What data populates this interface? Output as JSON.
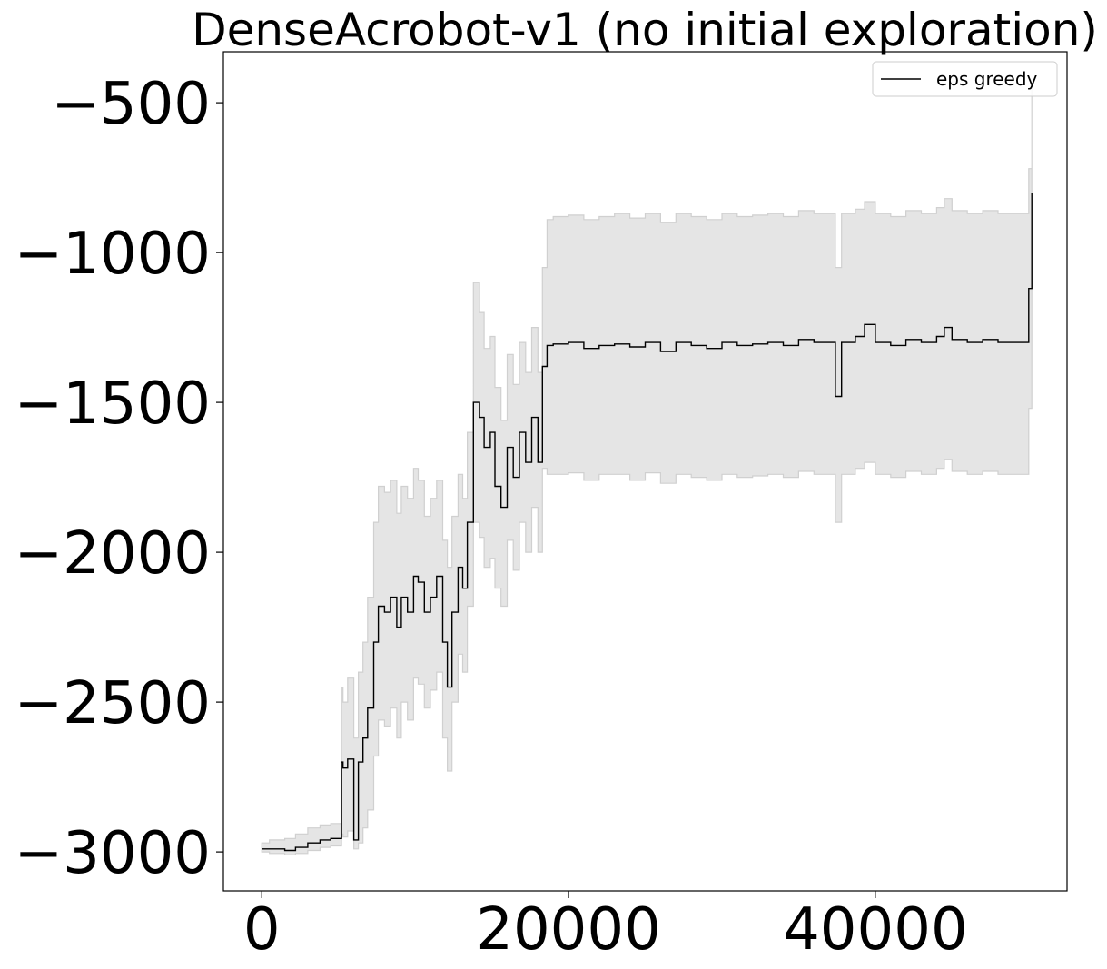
{
  "chart_data": {
    "type": "line",
    "title": "DenseAcrobot-v1 (no initial exploration)",
    "xlabel": "",
    "ylabel": "",
    "xlim": [
      -2500,
      52500
    ],
    "ylim": [
      -3130,
      -330
    ],
    "xticks": [
      0,
      20000,
      40000
    ],
    "xtick_labels": [
      "0",
      "20000",
      "40000"
    ],
    "yticks": [
      -500,
      -1000,
      -1500,
      -2000,
      -2500,
      -3000
    ],
    "ytick_labels": [
      "−500",
      "−1000",
      "−1500",
      "−2000",
      "−2500",
      "−3000"
    ],
    "grid": false,
    "legend": {
      "position": "top-right",
      "entries": [
        "eps greedy"
      ]
    },
    "colors": {
      "mean_line": "#000000",
      "band_fill": "#e5e5e5",
      "band_edge": "#d0d0d0"
    },
    "series": [
      {
        "name": "eps greedy",
        "x": [
          0,
          500,
          1500,
          2200,
          3000,
          3800,
          4500,
          5200,
          5300,
          5600,
          6000,
          6300,
          6600,
          6900,
          7300,
          7600,
          8000,
          8400,
          8800,
          9100,
          9500,
          9900,
          10200,
          10600,
          11000,
          11400,
          11800,
          12100,
          12400,
          12800,
          13100,
          13400,
          13800,
          14200,
          14500,
          14900,
          15200,
          15600,
          16000,
          16400,
          16800,
          17200,
          17600,
          18000,
          18300,
          18600,
          19000,
          20000,
          21000,
          22000,
          23000,
          24000,
          25000,
          26000,
          27000,
          28000,
          29000,
          30000,
          31000,
          32000,
          33000,
          34000,
          35000,
          36000,
          37000,
          37400,
          37800,
          38200,
          38700,
          39300,
          40000,
          41000,
          42000,
          43000,
          44000,
          44500,
          45000,
          46000,
          47000,
          48000,
          49000,
          49800,
          50000,
          50200
        ],
        "values": [
          -2990,
          -2990,
          -2995,
          -2985,
          -2970,
          -2960,
          -2955,
          -2700,
          -2720,
          -2690,
          -2960,
          -2700,
          -2620,
          -2520,
          -2300,
          -2180,
          -2200,
          -2150,
          -2250,
          -2150,
          -2200,
          -2080,
          -2100,
          -2200,
          -2150,
          -2080,
          -2300,
          -2450,
          -2200,
          -2050,
          -2120,
          -1900,
          -1500,
          -1550,
          -1650,
          -1600,
          -1780,
          -1850,
          -1650,
          -1750,
          -1600,
          -1700,
          -1550,
          -1700,
          -1380,
          -1310,
          -1305,
          -1300,
          -1320,
          -1310,
          -1305,
          -1315,
          -1300,
          -1330,
          -1300,
          -1310,
          -1320,
          -1300,
          -1310,
          -1305,
          -1300,
          -1310,
          -1290,
          -1300,
          -1300,
          -1480,
          -1300,
          -1300,
          -1280,
          -1240,
          -1300,
          -1310,
          -1290,
          -1300,
          -1280,
          -1250,
          -1290,
          -1300,
          -1290,
          -1300,
          -1300,
          -1300,
          -1120,
          -800
        ],
        "band_upper": [
          -2970,
          -2960,
          -2955,
          -2940,
          -2920,
          -2910,
          -2905,
          -2450,
          -2500,
          -2420,
          -2620,
          -2400,
          -2300,
          -2150,
          -1900,
          -1780,
          -1800,
          -1760,
          -1870,
          -1780,
          -1820,
          -1720,
          -1760,
          -1880,
          -1820,
          -1760,
          -1960,
          -2050,
          -1880,
          -1740,
          -1820,
          -1600,
          -1100,
          -1200,
          -1320,
          -1280,
          -1450,
          -1560,
          -1340,
          -1440,
          -1300,
          -1400,
          -1250,
          -1400,
          -1050,
          -890,
          -880,
          -875,
          -890,
          -880,
          -870,
          -885,
          -870,
          -900,
          -870,
          -880,
          -890,
          -870,
          -880,
          -875,
          -870,
          -880,
          -860,
          -870,
          -870,
          -1050,
          -870,
          -870,
          -855,
          -830,
          -870,
          -880,
          -860,
          -870,
          -850,
          -820,
          -860,
          -870,
          -860,
          -870,
          -870,
          -870,
          -720,
          -450
        ],
        "band_lower": [
          -3000,
          -3005,
          -3010,
          -3005,
          -2995,
          -2985,
          -2980,
          -2940,
          -2950,
          -2930,
          -2990,
          -2970,
          -2920,
          -2860,
          -2680,
          -2560,
          -2580,
          -2520,
          -2620,
          -2500,
          -2560,
          -2420,
          -2440,
          -2520,
          -2460,
          -2400,
          -2620,
          -2730,
          -2500,
          -2340,
          -2400,
          -2180,
          -1900,
          -1950,
          -2050,
          -2020,
          -2120,
          -2180,
          -1960,
          -2060,
          -1900,
          -2000,
          -1850,
          -2000,
          -1720,
          -1740,
          -1740,
          -1735,
          -1760,
          -1740,
          -1740,
          -1760,
          -1735,
          -1770,
          -1740,
          -1750,
          -1760,
          -1740,
          -1750,
          -1745,
          -1740,
          -1750,
          -1730,
          -1740,
          -1740,
          -1900,
          -1740,
          -1740,
          -1720,
          -1700,
          -1740,
          -1750,
          -1730,
          -1740,
          -1720,
          -1690,
          -1730,
          -1740,
          -1730,
          -1740,
          -1740,
          -1740,
          -1520,
          -1200
        ]
      }
    ]
  }
}
